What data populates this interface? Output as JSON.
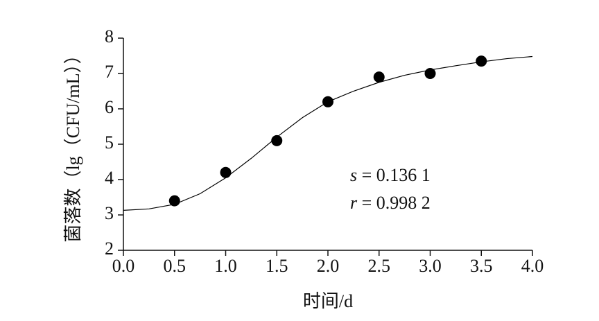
{
  "chart_data": {
    "type": "scatter",
    "x_label": "时间/d",
    "y_label": "菌落数（lg（CFU/mL））",
    "x": [
      0.5,
      1.0,
      1.5,
      2.0,
      2.5,
      3.0,
      3.5
    ],
    "values": [
      3.4,
      4.2,
      5.1,
      6.2,
      6.9,
      7.0,
      7.35
    ],
    "color": "#000000",
    "fit": {
      "x": [
        0,
        0.25,
        0.5,
        0.75,
        1.0,
        1.25,
        1.5,
        1.75,
        2.0,
        2.25,
        2.5,
        2.75,
        3.0,
        3.25,
        3.5,
        3.75,
        4.0
      ],
      "values": [
        3.13,
        3.17,
        3.3,
        3.6,
        4.05,
        4.6,
        5.2,
        5.75,
        6.2,
        6.5,
        6.75,
        6.95,
        7.1,
        7.22,
        7.33,
        7.42,
        7.48
      ]
    },
    "annotations": [
      "s = 0.136 1",
      "r = 0.998 2"
    ],
    "xlim": [
      0,
      4
    ],
    "xticks": [
      {
        "value": 0,
        "label": "0.0"
      },
      0.5,
      {
        "value": 1,
        "label": "1.0"
      },
      1.5,
      {
        "value": 2,
        "label": "2.0"
      },
      2.5,
      {
        "value": 3,
        "label": "3.0"
      },
      3.5,
      {
        "value": 4,
        "label": "4.0"
      }
    ],
    "ylim": [
      2,
      8
    ],
    "yticks": [
      2,
      3,
      4,
      5,
      6,
      7,
      8
    ],
    "grid": false
  }
}
